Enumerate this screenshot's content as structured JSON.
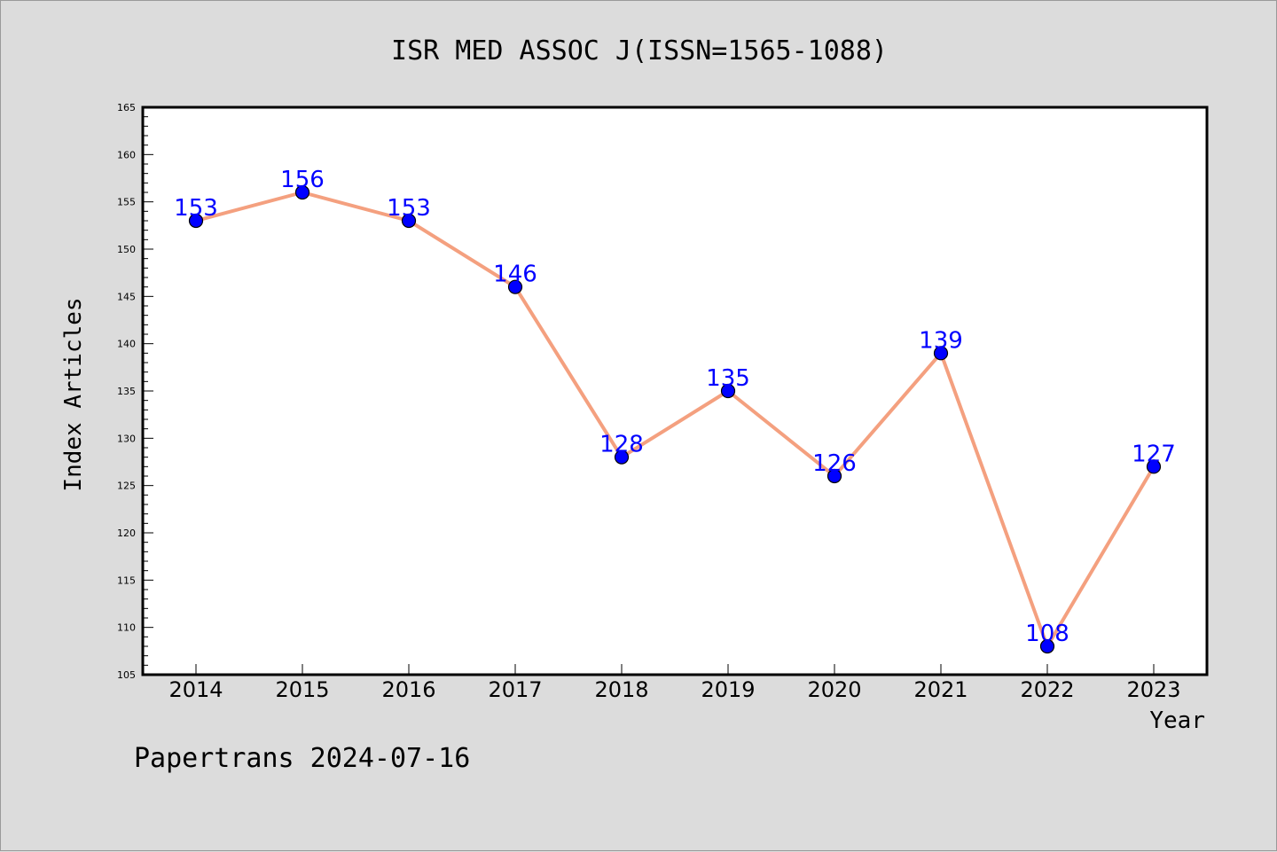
{
  "chart_data": {
    "type": "line",
    "title": "ISR MED ASSOC J(ISSN=1565-1088)",
    "xlabel": "Year",
    "ylabel": "Index Articles",
    "categories": [
      "2014",
      "2015",
      "2016",
      "2017",
      "2018",
      "2019",
      "2020",
      "2021",
      "2022",
      "2023"
    ],
    "series": [
      {
        "values": [
          153,
          156,
          153,
          146,
          128,
          135,
          126,
          139,
          108,
          127
        ],
        "labels": [
          "153",
          "156",
          "153",
          "146",
          "128",
          "135",
          "126",
          "139",
          "108",
          "127"
        ]
      }
    ],
    "ylim": [
      105,
      165
    ],
    "yticks": [
      105,
      110,
      115,
      120,
      125,
      130,
      135,
      140,
      145,
      150,
      155,
      160,
      165
    ],
    "grid": false,
    "legend": "none",
    "colors": {
      "line": "#f4a07f",
      "marker": "#0000ff",
      "data_label": "#0000ff",
      "background": "#dcdcdc",
      "plot_background": "#ffffff"
    }
  },
  "footer": "Papertrans 2024-07-16"
}
